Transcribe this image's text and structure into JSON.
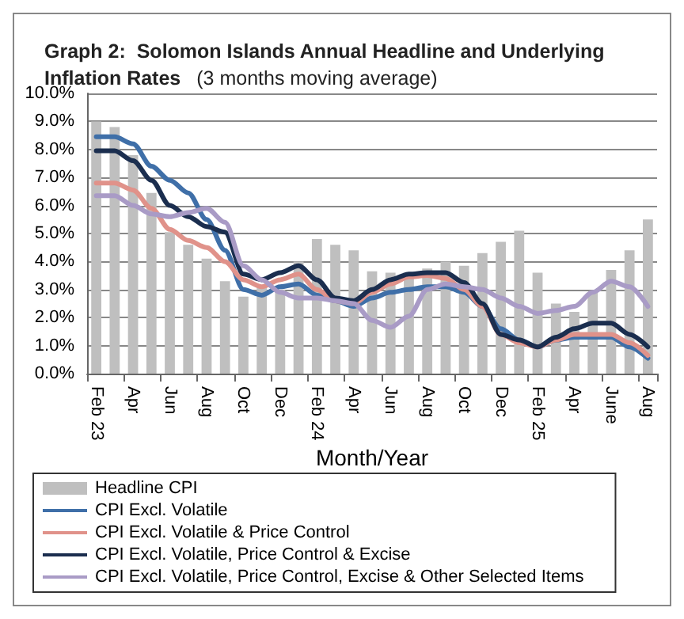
{
  "chart_data": {
    "type": "bar",
    "title": "Graph 2:  Solomon Islands Annual Headline and Underlying Inflation Rates",
    "subtitle": "(3 months moving average)",
    "xlabel": "Month/Year",
    "categories": [
      "Feb 23",
      null,
      "Apr",
      null,
      "Jun",
      null,
      "Aug",
      null,
      "Oct",
      null,
      "Dec",
      null,
      "Feb 24",
      null,
      "Apr",
      null,
      "Jun",
      null,
      "Aug",
      null,
      "Oct",
      null,
      "Dec",
      null,
      "Feb 25",
      null,
      "Apr",
      null,
      "June",
      null,
      "Aug"
    ],
    "series": [
      {
        "name": "Headline CPI",
        "color": "#bfbfbf",
        "values": [
          9.0,
          8.8,
          7.8,
          6.45,
          5.05,
          4.6,
          4.1,
          3.3,
          2.75,
          3.1,
          3.0,
          4.0,
          4.8,
          4.6,
          4.4,
          3.65,
          3.6,
          3.55,
          3.75,
          4.0,
          3.85,
          4.3,
          4.7,
          5.1,
          3.6,
          2.5,
          2.2,
          2.9,
          3.7,
          4.4,
          5.5
        ]
      },
      {
        "name": "CPI Excl. Volatile",
        "type": "line",
        "color": "#3f6fa8",
        "values": [
          8.45,
          8.45,
          8.2,
          7.4,
          6.9,
          6.45,
          5.5,
          4.4,
          3.0,
          2.8,
          3.1,
          3.2,
          2.8,
          2.6,
          2.4,
          2.7,
          2.9,
          3.0,
          3.1,
          3.1,
          2.9,
          2.4,
          1.6,
          1.2,
          0.95,
          1.2,
          1.3,
          1.3,
          1.3,
          0.95,
          0.55
        ]
      },
      {
        "name": "CPI Excl. Volatile & Price Control",
        "type": "line",
        "color": "#e0928a",
        "values": [
          6.8,
          6.8,
          6.55,
          5.9,
          5.15,
          4.75,
          4.5,
          4.0,
          3.35,
          3.1,
          3.35,
          3.55,
          3.0,
          2.6,
          2.5,
          2.9,
          3.2,
          3.45,
          3.5,
          3.4,
          3.0,
          2.4,
          1.4,
          1.1,
          0.95,
          1.2,
          1.4,
          1.4,
          1.4,
          1.1,
          0.65
        ]
      },
      {
        "name": "CPI Excl. Volatile, Price Control & Excise",
        "type": "line",
        "color": "#1b2e4f",
        "values": [
          7.95,
          7.95,
          7.6,
          6.9,
          6.0,
          5.6,
          5.25,
          5.05,
          3.55,
          3.35,
          3.6,
          3.85,
          3.35,
          2.7,
          2.6,
          3.0,
          3.35,
          3.55,
          3.6,
          3.6,
          3.25,
          2.5,
          1.4,
          1.2,
          0.95,
          1.3,
          1.6,
          1.8,
          1.8,
          1.4,
          0.95
        ]
      },
      {
        "name": "CPI Excl. Volatile, Price Control, Excise & Other Selected Items",
        "type": "line",
        "color": "#a99bc6",
        "values": [
          6.35,
          6.35,
          6.0,
          5.7,
          5.6,
          5.75,
          5.9,
          5.4,
          3.85,
          3.35,
          2.9,
          2.7,
          2.7,
          2.6,
          2.5,
          1.9,
          1.65,
          2.05,
          3.0,
          3.2,
          3.1,
          3.0,
          2.7,
          2.4,
          2.15,
          2.25,
          2.4,
          2.9,
          3.3,
          3.1,
          2.4
        ]
      }
    ],
    "ylim": [
      0,
      10
    ],
    "yticks": [
      {
        "value": 0,
        "label": "0.0%"
      },
      {
        "value": 1,
        "label": "1.0%"
      },
      {
        "value": 2,
        "label": "2.0%"
      },
      {
        "value": 3,
        "label": "3.0%"
      },
      {
        "value": 4,
        "label": "4.0%"
      },
      {
        "value": 5,
        "label": "5.0%"
      },
      {
        "value": 6,
        "label": "6.0%"
      },
      {
        "value": 7,
        "label": "7.0%"
      },
      {
        "value": 8,
        "label": "8.0%"
      },
      {
        "value": 9,
        "label": "9.0%"
      },
      {
        "value": 10,
        "label": "10.0%"
      }
    ],
    "grid": "y",
    "legend": "bottom",
    "marker": "none",
    "line_style": "solid"
  }
}
